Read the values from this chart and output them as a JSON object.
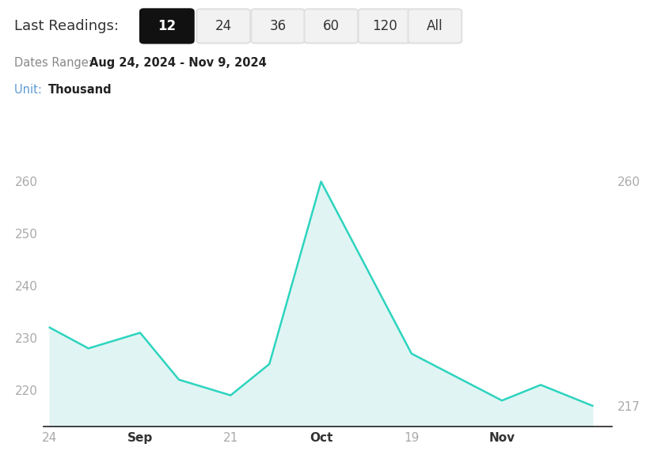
{
  "buttons": [
    "12",
    "24",
    "36",
    "60",
    "120",
    "All"
  ],
  "active_button": "12",
  "data_x": [
    0,
    3,
    7,
    10,
    14,
    17,
    21,
    28,
    35,
    38,
    42
  ],
  "data_y": [
    232,
    228,
    231,
    222,
    219,
    225,
    260,
    227,
    218,
    221,
    217
  ],
  "line_color": "#2dd4bf",
  "fill_color": "#e0f5f3",
  "line_width": 1.8,
  "ylim": [
    213,
    263
  ],
  "yticks": [
    220,
    230,
    240,
    250,
    260
  ],
  "background_color": "#ffffff",
  "tick_color": "#aaaaaa",
  "tick_color_bold": "#333333",
  "tick_fontsize": 11,
  "annotation_fontsize": 11,
  "unit_label_color": "#4a90d9",
  "button_bg_active": "#111111",
  "button_text_active": "#ffffff",
  "button_bg_inactive": "#f2f2f2",
  "button_text_inactive": "#333333",
  "button_border_inactive": "#e0e0e0",
  "dates_range_prefix_color": "#888888",
  "dates_range_text_color": "#222222",
  "unit_prefix_color": "#5b9bd5",
  "unit_text_color": "#222222"
}
